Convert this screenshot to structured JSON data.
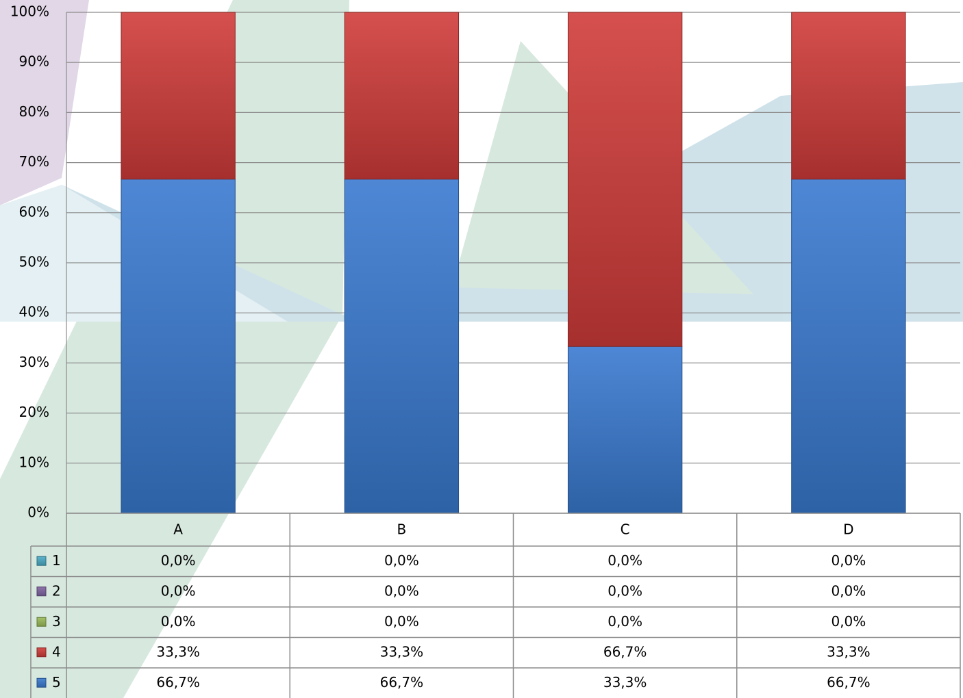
{
  "chart_data": {
    "type": "stacked_bar_100",
    "categories": [
      "A",
      "B",
      "C",
      "D"
    ],
    "series": [
      {
        "name": "1",
        "color": "#4bacc6",
        "values": [
          0,
          0,
          0,
          0
        ],
        "value_labels": [
          "0,0%",
          "0,0%",
          "0,0%",
          "0,0%"
        ]
      },
      {
        "name": "2",
        "color": "#8064a2",
        "values": [
          0,
          0,
          0,
          0
        ],
        "value_labels": [
          "0,0%",
          "0,0%",
          "0,0%",
          "0,0%"
        ]
      },
      {
        "name": "3",
        "color": "#9bbb59",
        "values": [
          0,
          0,
          0,
          0
        ],
        "value_labels": [
          "0,0%",
          "0,0%",
          "0,0%",
          "0,0%"
        ]
      },
      {
        "name": "4",
        "color": "#d03c3a",
        "values": [
          33.3,
          33.3,
          66.7,
          33.3
        ],
        "value_labels": [
          "33,3%",
          "33,3%",
          "66,7%",
          "33,3%"
        ]
      },
      {
        "name": "5",
        "color": "#3a7ad0",
        "values": [
          66.7,
          66.7,
          33.3,
          66.7
        ],
        "value_labels": [
          "66,7%",
          "66,7%",
          "33,3%",
          "66,7%"
        ]
      }
    ],
    "ylim": [
      0,
      100
    ],
    "yticks": [
      {
        "value": 0,
        "label": "0%"
      },
      {
        "value": 10,
        "label": "10%"
      },
      {
        "value": 20,
        "label": "20%"
      },
      {
        "value": 30,
        "label": "30%"
      },
      {
        "value": 40,
        "label": "40%"
      },
      {
        "value": 50,
        "label": "50%"
      },
      {
        "value": 60,
        "label": "60%"
      },
      {
        "value": 70,
        "label": "70%"
      },
      {
        "value": 80,
        "label": "80%"
      },
      {
        "value": 90,
        "label": "90%"
      },
      {
        "value": 100,
        "label": "100%"
      }
    ],
    "grid": true
  }
}
